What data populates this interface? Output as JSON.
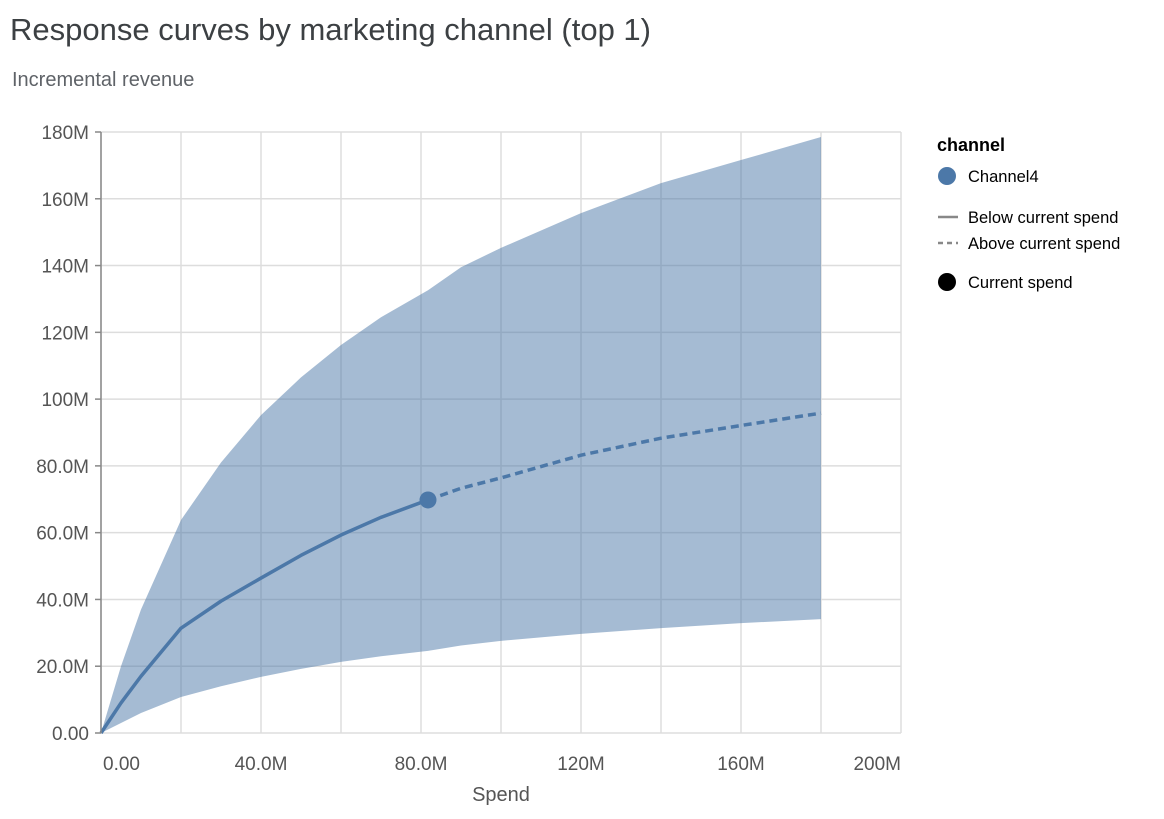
{
  "chart_data": {
    "type": "line",
    "title": "Response curves by marketing channel (top 1)",
    "subtitle": "Incremental revenue",
    "xlabel": "Spend",
    "ylabel": "",
    "xlim": [
      0,
      200000000
    ],
    "ylim": [
      0,
      180000000
    ],
    "grid": true,
    "x_ticks": [
      {
        "value": 0,
        "label": "0.00"
      },
      {
        "value": 40000000,
        "label": "40.0M"
      },
      {
        "value": 80000000,
        "label": "80.0M"
      },
      {
        "value": 120000000,
        "label": "120M"
      },
      {
        "value": 160000000,
        "label": "160M"
      },
      {
        "value": 200000000,
        "label": "200M"
      }
    ],
    "y_ticks": [
      {
        "value": 0,
        "label": "0.00"
      },
      {
        "value": 20000000,
        "label": "20.0M"
      },
      {
        "value": 40000000,
        "label": "40.0M"
      },
      {
        "value": 60000000,
        "label": "60.0M"
      },
      {
        "value": 80000000,
        "label": "80.0M"
      },
      {
        "value": 100000000,
        "label": "100M"
      },
      {
        "value": 120000000,
        "label": "120M"
      },
      {
        "value": 140000000,
        "label": "140M"
      },
      {
        "value": 160000000,
        "label": "160M"
      },
      {
        "value": 180000000,
        "label": "180M"
      }
    ],
    "series": [
      {
        "name": "Channel4",
        "color": "#4c78a8",
        "x": [
          0,
          5000000,
          10000000,
          20000000,
          30000000,
          40000000,
          50000000,
          60000000,
          70000000,
          81750000,
          90000000,
          100000000,
          120000000,
          140000000,
          160000000,
          180000000
        ],
        "mean": [
          0,
          9000000,
          17000000,
          31400000,
          39500000,
          46400000,
          53200000,
          59300000,
          64600000,
          69800000,
          73300000,
          76400000,
          83200000,
          88300000,
          92100000,
          95800000
        ],
        "lower": [
          0,
          3000000,
          6000000,
          10800000,
          14000000,
          16800000,
          19200000,
          21300000,
          23000000,
          24600000,
          26200000,
          27600000,
          29700000,
          31400000,
          32900000,
          34100000
        ],
        "upper": [
          0,
          20000000,
          37000000,
          63800000,
          81000000,
          95200000,
          106500000,
          116200000,
          124500000,
          132600000,
          139500000,
          145300000,
          155700000,
          164700000,
          171600000,
          178500000
        ]
      }
    ],
    "current_spend": {
      "x": 81750000,
      "y": 69800000
    },
    "legend": {
      "position": "right",
      "title": "channel",
      "channel_label": "Channel4",
      "below_label": "Below current spend",
      "above_label": "Above current spend",
      "current_label": "Current spend"
    }
  }
}
